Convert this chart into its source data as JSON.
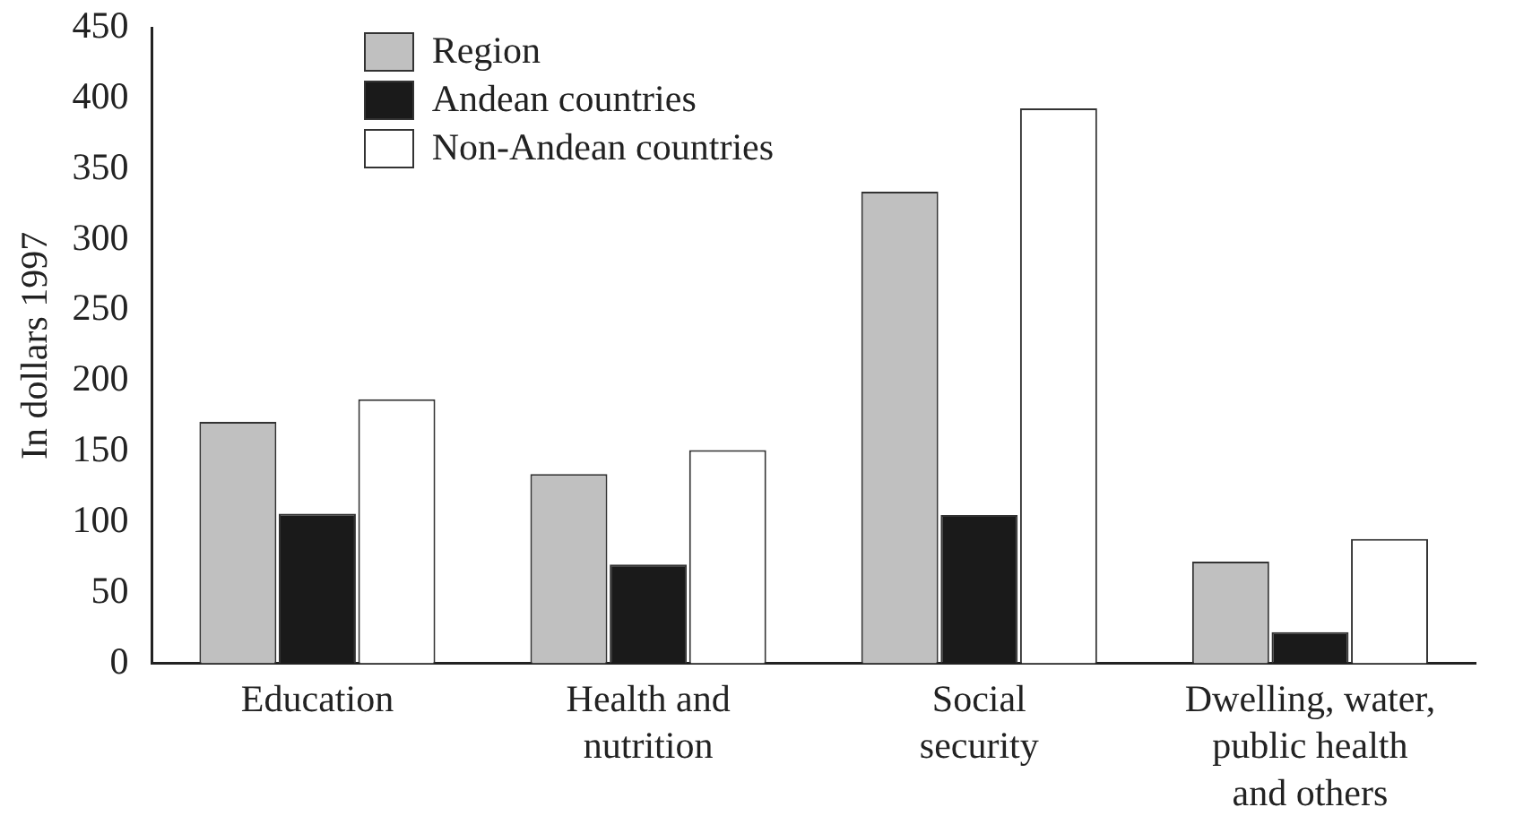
{
  "chart_data": {
    "type": "bar",
    "ylabel": "In dollars 1997",
    "categories": [
      "Education",
      "Health and\nnutrition",
      "Social\nsecurity",
      "Dwelling, water,\npublic health\nand others"
    ],
    "series": [
      {
        "name": "Region",
        "color": "#c0c0c0",
        "values": [
          171,
          134,
          334,
          72
        ]
      },
      {
        "name": "Andean countries",
        "color": "#1a1a1a",
        "values": [
          106,
          70,
          105,
          22
        ]
      },
      {
        "name": "Non-Andean countries",
        "color": "#ffffff",
        "values": [
          187,
          151,
          393,
          88
        ]
      }
    ],
    "ylim": [
      0,
      450
    ],
    "yticks": [
      0,
      50,
      100,
      150,
      200,
      250,
      300,
      350,
      400,
      450
    ],
    "grid": false,
    "legend": "top"
  }
}
